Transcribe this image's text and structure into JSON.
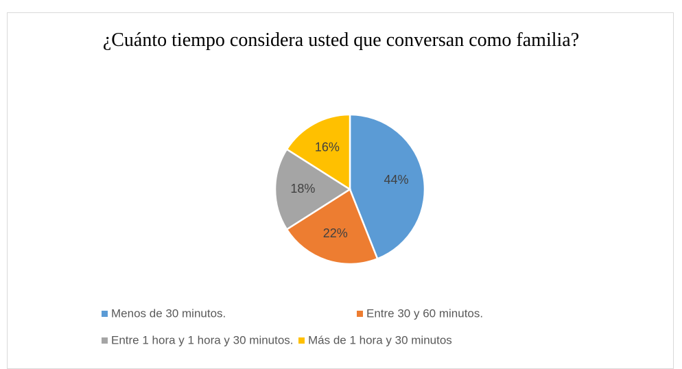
{
  "chart_data": {
    "type": "pie",
    "title": "¿Cuánto tiempo considera usted que conversan como familia?",
    "categories": [
      "Menos de 30 minutos.",
      "Entre 30 y 60 minutos.",
      "Entre 1 hora y 1 hora y 30 minutos.",
      "Más de 1 hora y 30 minutos"
    ],
    "values": [
      44,
      22,
      18,
      16
    ],
    "value_labels": [
      "44%",
      "22%",
      "18%",
      "16%"
    ],
    "colors": [
      "#5b9bd5",
      "#ed7d31",
      "#a5a5a5",
      "#ffc000"
    ],
    "legend": "bottom"
  }
}
